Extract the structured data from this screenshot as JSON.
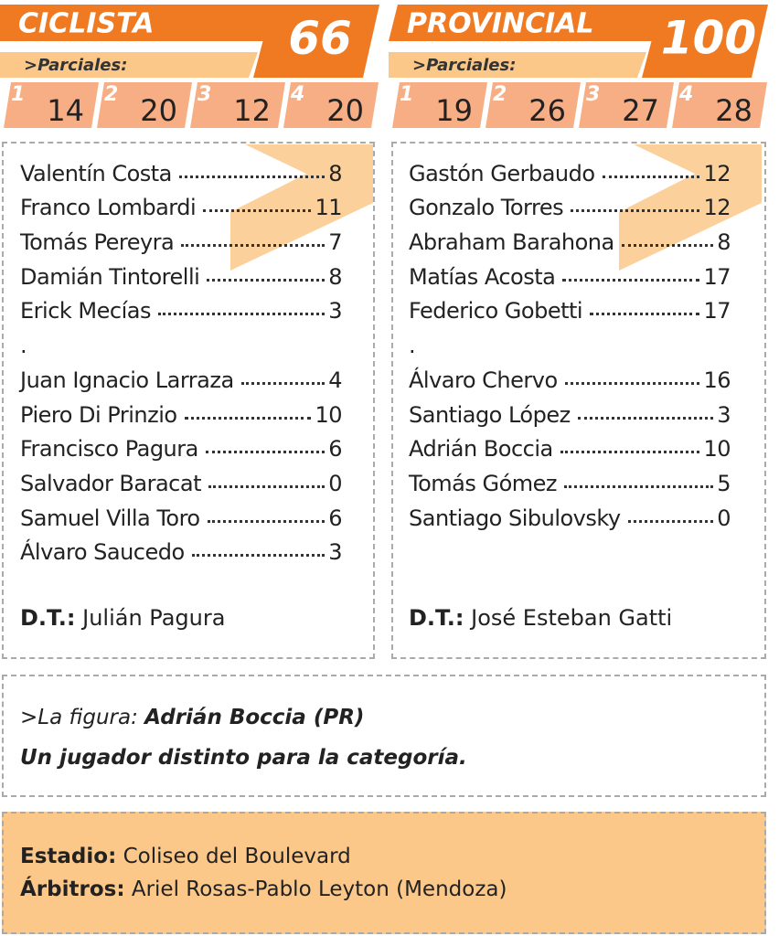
{
  "teams": [
    {
      "name": "CICLISTA",
      "score": 66,
      "partials_label": ">Parciales:",
      "quarters": [
        {
          "label": "1",
          "points": 14
        },
        {
          "label": "2",
          "points": 20
        },
        {
          "label": "3",
          "points": 12
        },
        {
          "label": "4",
          "points": 20
        }
      ],
      "starters": [
        {
          "name": "Valentín Costa",
          "points": 8
        },
        {
          "name": "Franco Lombardi",
          "points": 11
        },
        {
          "name": "Tomás Pereyra",
          "points": 7
        },
        {
          "name": "Damián Tintorelli",
          "points": 8
        },
        {
          "name": "Erick Mecías",
          "points": 3
        }
      ],
      "separator": ".",
      "bench": [
        {
          "name": "Juan Ignacio Larraza",
          "points": 4
        },
        {
          "name": "Piero Di Prinzio",
          "points": 10
        },
        {
          "name": "Francisco Pagura",
          "points": 6
        },
        {
          "name": "Salvador Baracat",
          "points": 0
        },
        {
          "name": "Samuel Villa Toro",
          "points": 6
        },
        {
          "name": "Álvaro Saucedo",
          "points": 3
        }
      ],
      "coach_label": "D.T.:",
      "coach": "Julián Pagura"
    },
    {
      "name": "PROVINCIAL",
      "score": 100,
      "partials_label": ">Parciales:",
      "quarters": [
        {
          "label": "1",
          "points": 19
        },
        {
          "label": "2",
          "points": 26
        },
        {
          "label": "3",
          "points": 27
        },
        {
          "label": "4",
          "points": 28
        }
      ],
      "starters": [
        {
          "name": "Gastón Gerbaudo",
          "points": 12
        },
        {
          "name": "Gonzalo Torres",
          "points": 12
        },
        {
          "name": "Abraham Barahona",
          "points": 8
        },
        {
          "name": "Matías Acosta",
          "points": 17
        },
        {
          "name": "Federico Gobetti",
          "points": 17
        }
      ],
      "separator": ".",
      "bench": [
        {
          "name": "Álvaro Chervo",
          "points": 16
        },
        {
          "name": "Santiago López",
          "points": 3
        },
        {
          "name": "Adrián Boccia",
          "points": 10
        },
        {
          "name": "Tomás Gómez",
          "points": 5
        },
        {
          "name": "Santiago Sibulovsky",
          "points": 0
        }
      ],
      "coach_label": "D.T.:",
      "coach": "José Esteban Gatti"
    }
  ],
  "figure": {
    "label": ">La figura:",
    "name": "Adrián Boccia (PR)",
    "comment": "Un jugador distinto para la categoría."
  },
  "info": {
    "stadium_label": "Estadio:",
    "stadium": "Coliseo del Boulevard",
    "referees_label": "Árbitros:",
    "referees": "Ariel Rosas-Pablo Leyton (Mendoza)"
  }
}
